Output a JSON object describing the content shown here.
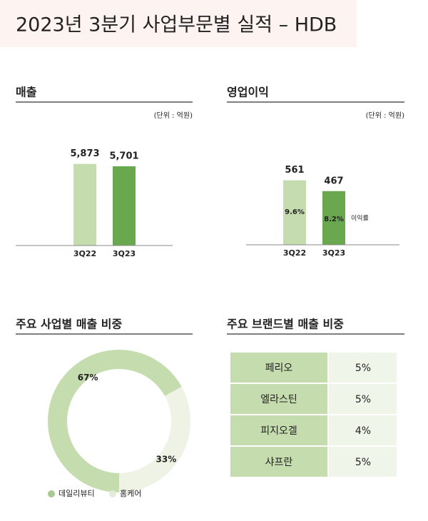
{
  "header": {
    "title": "2023년 3분기 사업부문별 실적 – HDB"
  },
  "chart_data": [
    {
      "type": "bar",
      "title": "매출",
      "subtitle": "(단위 : 억원)",
      "categories": [
        "3Q22",
        "3Q23"
      ],
      "values": [
        5873,
        5701
      ],
      "value_labels": [
        "5,873",
        "5,701"
      ],
      "colors": [
        "#c5dcae",
        "#6aa84f"
      ],
      "ylim": [
        0,
        7500
      ]
    },
    {
      "type": "bar",
      "title": "영업이익",
      "subtitle": "(단위 : 억원)",
      "categories": [
        "3Q22",
        "3Q23"
      ],
      "values": [
        561,
        467
      ],
      "colors": [
        "#c5dcae",
        "#6aa84f"
      ],
      "ylim": [
        0,
        900
      ],
      "margin": {
        "name": "이익률",
        "values": [
          9.6,
          8.2
        ],
        "value_labels": [
          "9.6%",
          "8.2%"
        ]
      }
    },
    {
      "type": "pie",
      "title": "주요 사업별 매출 비중",
      "categories": [
        "데일리뷰티",
        "홈케어"
      ],
      "values": [
        67,
        33
      ],
      "value_labels": [
        "67%",
        "33%"
      ],
      "colors": [
        "#c5dcae",
        "#eef3e6"
      ]
    }
  ],
  "table": {
    "title": "주요 브랜드별 매출 비중",
    "rows": [
      [
        "페리오",
        "5%"
      ],
      [
        "엘라스틴",
        "5%"
      ],
      [
        "피지오겔",
        "4%"
      ],
      [
        "샤프란",
        "5%"
      ]
    ]
  }
}
